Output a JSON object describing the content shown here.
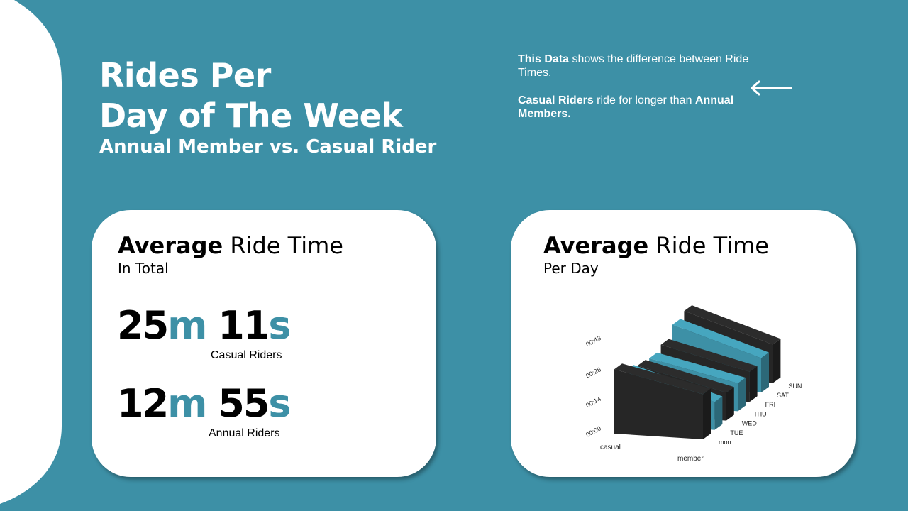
{
  "header": {
    "title_line1": "Rides Per",
    "title_line2": "Day of The Week",
    "subtitle": "Annual Member vs. Casual Rider"
  },
  "note": {
    "p1_bold": "This Data",
    "p1_rest": " shows the difference between Ride Times.",
    "p2_bold": "Casual Riders",
    "p2_rest": " ride for longer than ",
    "p2_bold2": "Annual Members."
  },
  "card_total": {
    "heading_bold": "Average",
    "heading_rest": " Ride Time",
    "subheading": "In Total",
    "casual": {
      "min": "25",
      "min_unit": "m",
      "sec": "11",
      "sec_unit": "s",
      "label": "Casual Riders"
    },
    "annual": {
      "min": "12",
      "min_unit": "m",
      "sec": "55",
      "sec_unit": "s",
      "label": "Annual Riders"
    }
  },
  "card_daily": {
    "heading_bold": "Average",
    "heading_rest": " Ride Time",
    "subheading": "Per Day"
  },
  "colors": {
    "background": "#3d90a6",
    "casual": "#262626",
    "member": "#3d90a6",
    "card": "#ffffff"
  },
  "chart_data": {
    "type": "bar",
    "style": "3d-area",
    "x": [
      "casual",
      "member"
    ],
    "xlabel": "",
    "ylabel": "",
    "series_axis": [
      "mon",
      "TUE",
      "WED",
      "THU",
      "FRI",
      "SAT",
      "SUN"
    ],
    "ytick_labels": [
      "00:00",
      "00:14",
      "00:28",
      "00:43"
    ],
    "ylim_minutes": [
      0,
      43
    ],
    "series": [
      {
        "name": "mon",
        "color": "#262626",
        "values": [
          30,
          21
        ]
      },
      {
        "name": "TUE",
        "color": "#3d90a6",
        "values": [
          25,
          13
        ]
      },
      {
        "name": "WED",
        "color": "#262626",
        "values": [
          23,
          13
        ]
      },
      {
        "name": "THU",
        "color": "#3d90a6",
        "values": [
          22,
          13
        ]
      },
      {
        "name": "FRI",
        "color": "#262626",
        "values": [
          24,
          14
        ]
      },
      {
        "name": "SAT",
        "color": "#3d90a6",
        "values": [
          29,
          16
        ]
      },
      {
        "name": "SUN",
        "color": "#262626",
        "values": [
          31,
          18
        ]
      }
    ]
  }
}
